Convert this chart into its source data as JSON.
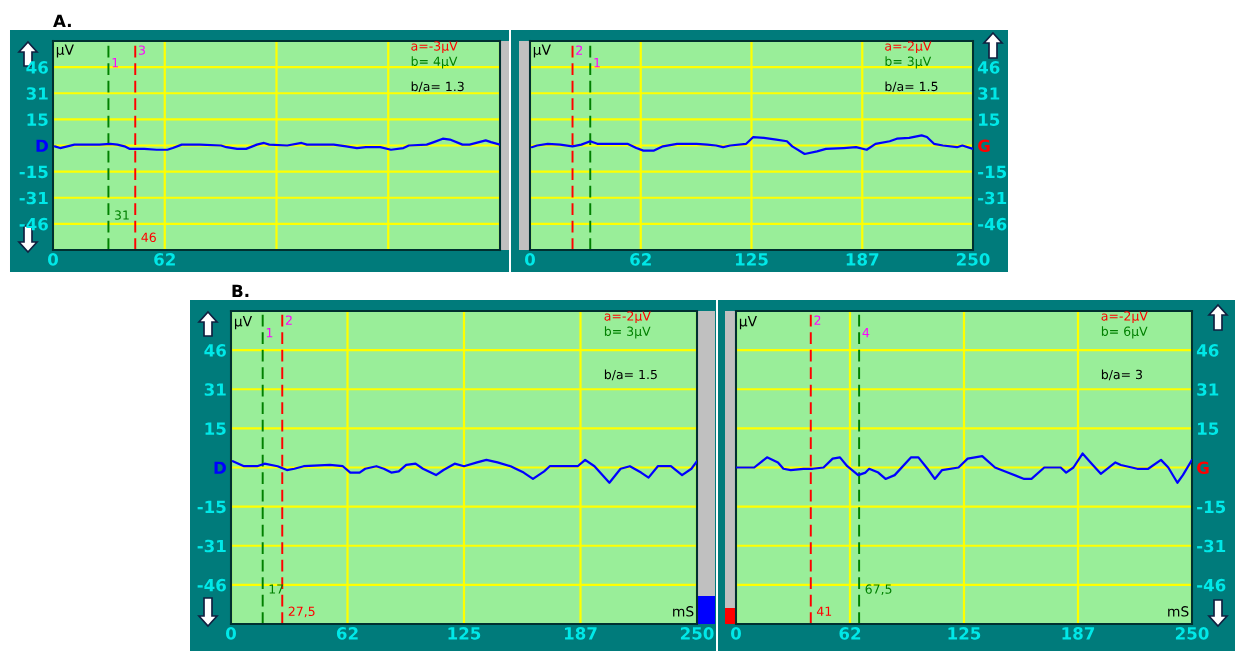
{
  "chart_data": [
    {
      "type": "line",
      "title": "A.",
      "ylabel": "µV",
      "xlim": [
        0,
        250
      ],
      "ylim": [
        -61.6,
        61.6
      ],
      "grid": true,
      "xticks": [
        0,
        {
          "value": 62.5,
          "label": "62"
        },
        {
          "value": 125,
          "label": null
        },
        {
          "value": 187.5,
          "label": null
        },
        {
          "value": 250,
          "label": null
        }
      ],
      "yticks": [
        {
          "value": -46.2,
          "label": "-46"
        },
        {
          "value": -30.8,
          "label": "-31"
        },
        {
          "value": -15.4,
          "label": "-15"
        },
        {
          "value": 0,
          "label": "D"
        },
        {
          "value": 15.4,
          "label": "15"
        },
        {
          "value": 30.8,
          "label": "31"
        },
        {
          "value": 46.2,
          "label": "46"
        }
      ],
      "x": [
        1,
        4,
        8,
        12,
        26,
        32,
        36,
        40,
        43,
        51,
        58,
        64,
        67,
        72,
        82,
        94,
        97,
        103,
        108,
        114,
        118,
        121,
        131,
        139,
        142,
        157,
        164,
        170,
        175,
        183,
        189,
        196,
        199,
        209,
        213,
        218,
        222,
        229,
        233,
        242,
        245,
        250
      ],
      "series": [
        {
          "color": "#0000ff",
          "values": [
            -0.5,
            -1.5,
            -0.5,
            0.5,
            0.5,
            1,
            0.5,
            -0.5,
            -2,
            -2,
            -2.5,
            -2.5,
            -1.5,
            0.5,
            0.5,
            0,
            -1,
            -2,
            -2,
            0.5,
            1.5,
            0.5,
            0,
            1.5,
            0.5,
            0.5,
            -0.5,
            -1.5,
            -1,
            -1,
            -2.5,
            -1.5,
            0,
            0.5,
            2,
            4,
            3.5,
            0.5,
            0.5,
            3,
            2,
            0.5
          ]
        }
      ],
      "ref_lines": [
        {
          "axis": "x",
          "value": 31,
          "label": "31",
          "color": "#008000",
          "line_style": "dashed"
        },
        {
          "axis": "x",
          "value": 46,
          "label": "46",
          "color": "#ff0000",
          "line_style": "dashed"
        }
      ],
      "annotations": [
        "a=-3µV",
        "b= 4µV",
        "b/a= 1.3",
        "1",
        "3"
      ]
    },
    {
      "type": "line",
      "ylabel": "µV",
      "xlim": [
        0,
        250
      ],
      "ylim": [
        -61.6,
        61.6
      ],
      "grid": true,
      "xticks": [
        0,
        {
          "value": 62.5,
          "label": "62"
        },
        125,
        {
          "value": 187.5,
          "label": "187"
        },
        250
      ],
      "yticks": [
        {
          "value": -46.2,
          "label": "-46"
        },
        {
          "value": -30.8,
          "label": "-31"
        },
        {
          "value": -15.4,
          "label": "-15"
        },
        {
          "value": 0,
          "label": "G"
        },
        {
          "value": 15.4,
          "label": "15"
        },
        {
          "value": 30.8,
          "label": "31"
        },
        {
          "value": 46.2,
          "label": "46"
        }
      ],
      "x": [
        1,
        4,
        10,
        17,
        24,
        29,
        34,
        38,
        45,
        55,
        60,
        64,
        70,
        75,
        83,
        94,
        100,
        105,
        109,
        113,
        122,
        126,
        132,
        139,
        145,
        148,
        155,
        162,
        167,
        177,
        184,
        190,
        195,
        203,
        207,
        214,
        221,
        224,
        228,
        233,
        241,
        244,
        250
      ],
      "series": [
        {
          "color": "#0000ff",
          "values": [
            -1,
            0,
            1,
            0.5,
            -0.5,
            0.5,
            2.5,
            1,
            1,
            1,
            -1.5,
            -3,
            -3,
            -0.5,
            1,
            1,
            0.5,
            0,
            -1,
            0,
            1,
            5,
            4.5,
            3.5,
            2.5,
            -0.5,
            -5,
            -3.5,
            -2,
            -1.5,
            -1,
            -2.5,
            1,
            2.5,
            4,
            4.5,
            6,
            5,
            1,
            0,
            -1,
            0,
            -2
          ]
        }
      ],
      "ref_lines": [
        {
          "axis": "x",
          "value": 24,
          "color": "#ff0000",
          "line_style": "dashed"
        },
        {
          "axis": "x",
          "value": 34,
          "color": "#008000",
          "line_style": "dashed"
        }
      ],
      "annotations": [
        "a=-2µV",
        "b= 3µV",
        "b/a= 1.5",
        "2",
        "1"
      ]
    },
    {
      "type": "line",
      "title": "B.",
      "ylabel": "µV",
      "xlabel": "mS",
      "xlim": [
        0,
        250
      ],
      "ylim": [
        -61.6,
        61.6
      ],
      "grid": true,
      "xticks": [
        0,
        {
          "value": 62.5,
          "label": "62"
        },
        125,
        {
          "value": 187.5,
          "label": "187"
        },
        250
      ],
      "yticks": [
        {
          "value": -46.2,
          "label": "-46"
        },
        {
          "value": -30.8,
          "label": "-31"
        },
        {
          "value": -15.4,
          "label": "-15"
        },
        {
          "value": 0,
          "label": "D"
        },
        {
          "value": 15.4,
          "label": "15"
        },
        {
          "value": 30.8,
          "label": "31"
        },
        {
          "value": 46.2,
          "label": "46"
        }
      ],
      "x": [
        1,
        7,
        14,
        18,
        25,
        30,
        34,
        39,
        53,
        60,
        64,
        69,
        72,
        78,
        82,
        86,
        90,
        94,
        99,
        103,
        110,
        114,
        120,
        125,
        132,
        137,
        143,
        150,
        157,
        162,
        168,
        171,
        182,
        186,
        190,
        195,
        203,
        209,
        214,
        220,
        224,
        229,
        236,
        242,
        247,
        250
      ],
      "series": [
        {
          "color": "#0000ff",
          "values": [
            2.5,
            0.5,
            0.5,
            1.5,
            0.5,
            -1,
            -0.5,
            0.5,
            1,
            0.5,
            -2,
            -2,
            -0.5,
            0.5,
            -0.5,
            -2,
            -1.5,
            1,
            1.5,
            -0.5,
            -3,
            -1,
            1.5,
            0.5,
            2,
            3,
            2,
            0.5,
            -2,
            -4.5,
            -1.5,
            0.5,
            0.5,
            0.5,
            3,
            0.5,
            -6,
            -0.5,
            0.5,
            -2,
            -4,
            0.5,
            0.5,
            -3,
            -0.5,
            2.5
          ]
        }
      ],
      "ref_lines": [
        {
          "axis": "x",
          "value": 17,
          "label": "17",
          "color": "#008000",
          "line_style": "dashed"
        },
        {
          "axis": "x",
          "value": 27.5,
          "label": "27,5",
          "color": "#ff0000",
          "line_style": "dashed"
        }
      ],
      "annotations": [
        "a=-2µV",
        "b= 3µV",
        "b/a= 1.5",
        "1",
        "2"
      ]
    },
    {
      "type": "line",
      "ylabel": "µV",
      "xlabel": "mS",
      "xlim": [
        0,
        250
      ],
      "ylim": [
        -61.6,
        61.6
      ],
      "grid": true,
      "xticks": [
        0,
        {
          "value": 62.5,
          "label": "62"
        },
        125,
        {
          "value": 187.5,
          "label": "187"
        },
        250
      ],
      "yticks": [
        {
          "value": -46.2,
          "label": "-46"
        },
        {
          "value": -30.8,
          "label": "-31"
        },
        {
          "value": -15.4,
          "label": "-15"
        },
        {
          "value": 0,
          "label": "G"
        },
        {
          "value": 15.4,
          "label": "15"
        },
        {
          "value": 30.8,
          "label": "31"
        },
        {
          "value": 46.2,
          "label": "46"
        }
      ],
      "x": [
        0,
        10,
        17,
        23,
        26,
        30,
        37,
        42,
        48,
        53,
        57,
        61,
        67,
        71,
        73,
        78,
        82,
        87,
        96,
        100,
        105,
        109,
        113,
        122,
        127,
        135,
        142,
        149,
        158,
        162,
        169,
        178,
        181,
        185,
        190,
        195,
        200,
        208,
        211,
        220,
        226,
        233,
        237,
        242,
        245,
        250
      ],
      "series": [
        {
          "color": "#0000ff",
          "values": [
            0,
            0,
            4,
            2,
            -0.5,
            -1,
            -0.5,
            -0.5,
            0,
            3.5,
            4,
            0.5,
            -3,
            -2,
            -0.5,
            -2,
            -4.5,
            -3,
            4,
            4,
            -0.5,
            -4.5,
            -1,
            0,
            3.5,
            4.5,
            0,
            -2,
            -4.5,
            -4.5,
            0,
            0,
            -2,
            0,
            5.5,
            1.5,
            -2.5,
            2,
            1,
            -0.5,
            -0.5,
            3,
            0,
            -6,
            -3,
            3
          ]
        }
      ],
      "ref_lines": [
        {
          "axis": "x",
          "value": 41,
          "label": "41",
          "color": "#ff0000",
          "line_style": "dashed"
        },
        {
          "axis": "x",
          "value": 67.5,
          "label": "67,5",
          "color": "#008000",
          "line_style": "dashed"
        }
      ],
      "annotations": [
        "a=-2µV",
        "b= 6µV",
        "b/a= 3",
        "2",
        "4"
      ]
    }
  ]
}
